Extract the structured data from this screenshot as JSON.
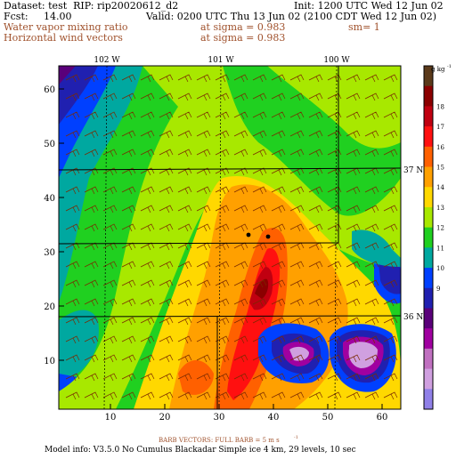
{
  "header": {
    "dataset": "Dataset: test  RIP: rip20020612_d2",
    "init": "Init: 1200 UTC Wed 12 Jun 02",
    "fcst": "Fcst:     14.00",
    "valid": "Valid: 0200 UTC Thu 13 Jun 02 (2100 CDT Wed 12 Jun 02)",
    "field1": "Water vapor mixing ratio",
    "field1_level": "at sigma = 0.983",
    "field1_sm": "sm= 1",
    "field2": "Horizontal wind vectors",
    "field2_level": "at sigma = 0.983"
  },
  "map": {
    "lon_labels": [
      "102 W",
      "101 W",
      "100 W"
    ],
    "lat_labels": [
      "37 N",
      "36 N"
    ],
    "y_ticks": [
      "60",
      "50",
      "40",
      "30",
      "20",
      "10"
    ],
    "x_ticks": [
      "10",
      "20",
      "30",
      "40",
      "50",
      "60"
    ]
  },
  "colorbar": {
    "unit": "g kg",
    "unit_exp": "-1",
    "levels": [
      "18",
      "17",
      "16",
      "15",
      "14",
      "13",
      "12",
      "11",
      "10",
      "9"
    ],
    "colors": [
      "#5b3a1a",
      "#8b0000",
      "#c00010",
      "#ff1010",
      "#ff6000",
      "#ffa000",
      "#ffd800",
      "#a8e800",
      "#20d020",
      "#00a8a0",
      "#0040ff",
      "#2020b0",
      "#5a007a",
      "#a000a0",
      "#c070c0",
      "#d0a0e0",
      "#9080e8"
    ]
  },
  "footer": {
    "barb_label": "BARB VECTORS:  FULL BARB = 5 m s",
    "barb_exp": "-1",
    "model_info": "Model info: V3.5.0 No Cumulus Blackadar  Simple ice    4 km,  29 levels,   10 sec"
  }
}
